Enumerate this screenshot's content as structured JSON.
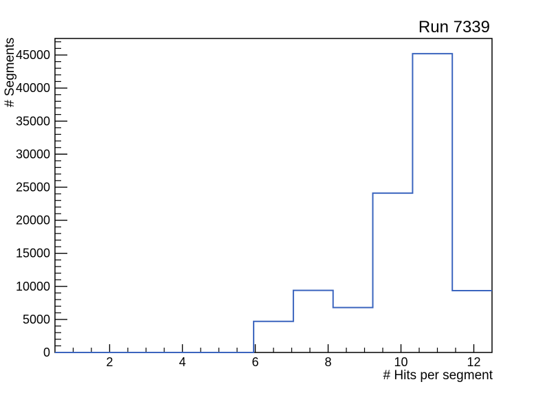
{
  "chart_data": {
    "type": "bar",
    "subtype": "step-histogram",
    "title": "Run 7339",
    "xlabel": "# Hits per segment",
    "ylabel": "# Segments",
    "xlim": [
      0.5,
      12.5
    ],
    "ylim": [
      0,
      47500
    ],
    "n_bins": 11,
    "bin_edges": [
      0.5,
      1.591,
      2.682,
      3.773,
      4.864,
      5.955,
      7.045,
      8.136,
      9.227,
      10.318,
      11.409,
      12.5
    ],
    "values": [
      0,
      0,
      0,
      0,
      0,
      4700,
      9400,
      6800,
      24100,
      45200,
      9350
    ],
    "x_major_ticks": [
      2,
      4,
      6,
      8,
      10,
      12
    ],
    "x_minor_step": 0.5,
    "y_major_ticks": [
      0,
      5000,
      10000,
      15000,
      20000,
      25000,
      30000,
      35000,
      40000,
      45000
    ],
    "y_major_step": 5000,
    "y_minor_step": 1000,
    "grid": false,
    "legend": null,
    "line_color": "#3a64be",
    "axis_color": "#000000",
    "background_color": "#ffffff"
  }
}
